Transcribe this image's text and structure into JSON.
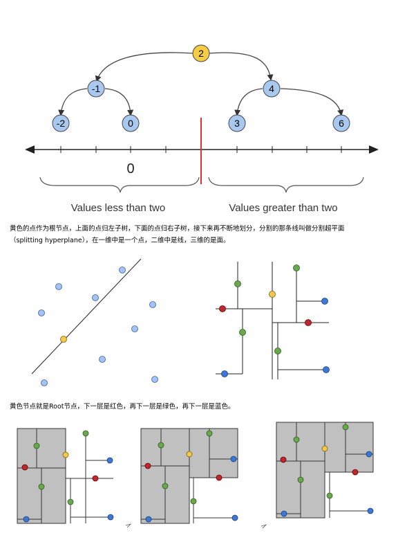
{
  "bst": {
    "nodes": [
      {
        "label": "2",
        "color": "#f5cc45"
      },
      {
        "label": "-1",
        "color": "#a8c8f0"
      },
      {
        "label": "4",
        "color": "#a8c8f0"
      },
      {
        "label": "-2",
        "color": "#a8c8f0"
      },
      {
        "label": "0",
        "color": "#a8c8f0"
      },
      {
        "label": "3",
        "color": "#a8c8f0"
      },
      {
        "label": "6",
        "color": "#a8c8f0"
      }
    ],
    "axis_zero_label": "0",
    "left_caption": "Values less than two",
    "right_caption": "Values greater than two"
  },
  "text1_line1": "黄色的点作为根节点，上面的点归左子树，下面的点归右子树，接下来再不断地划分，分割的那条线叫做分割超平面",
  "text1_line2": "（splitting hyperplane），在一维中是一个点，二维中是线，三维的是面。",
  "text2": "黄色节点就是Root节点，下一层是红色，再下一层是绿色，再下一层是蓝色。",
  "colors": {
    "yellow": "#f2c94c",
    "red": "#c0282d",
    "green": "#6aa84f",
    "blue": "#3c78d8",
    "light_blue": "#a4c2f4",
    "gray_region": "#c0c0c0",
    "divider": "#e03030"
  }
}
